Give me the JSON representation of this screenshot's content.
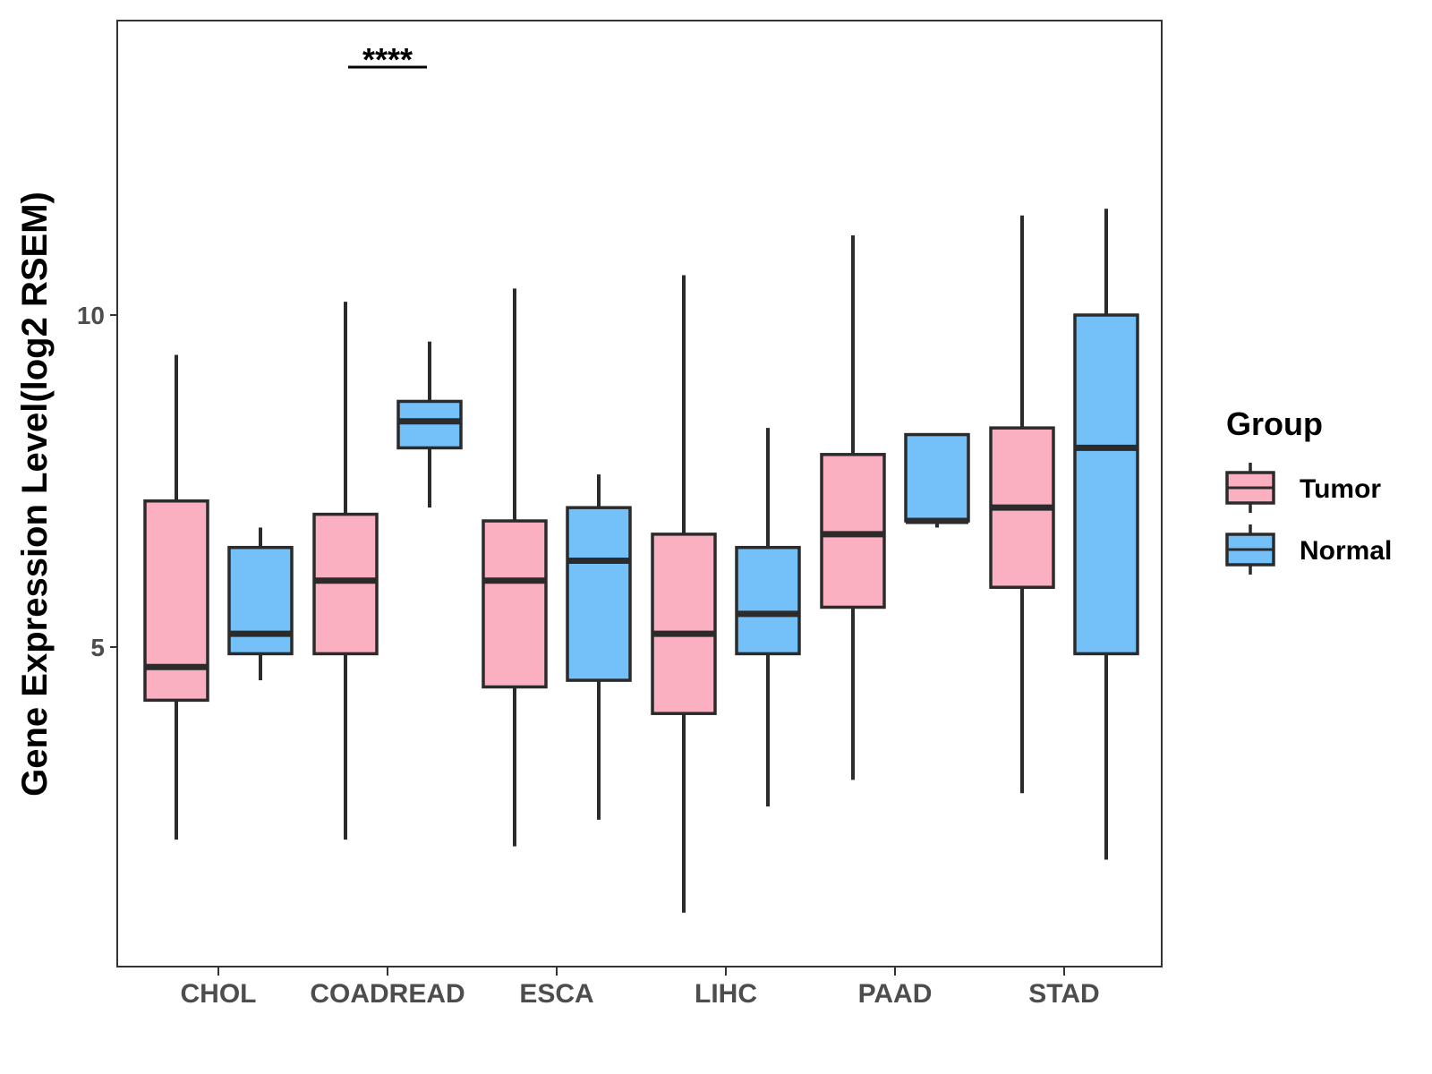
{
  "chart_data": {
    "type": "boxplot",
    "title": "",
    "xlabel": "",
    "ylabel": "Gene Expression Level(log2 RSEM)",
    "ylim": [
      0.3,
      14.5
    ],
    "yticks": [
      5,
      10
    ],
    "grid": false,
    "categories": [
      "CHOL",
      "COADREAD",
      "ESCA",
      "LIHC",
      "PAAD",
      "STAD"
    ],
    "legend": {
      "title": "Group",
      "position": "right",
      "entries": [
        {
          "name": "Tumor",
          "color": "#FBB0C2"
        },
        {
          "name": "Normal",
          "color": "#74C0F8"
        }
      ]
    },
    "series": [
      {
        "name": "Tumor",
        "color": "#FBB0C2",
        "boxes": [
          {
            "whisker_low": 2.1,
            "q1": 4.2,
            "median": 4.7,
            "q3": 7.2,
            "whisker_high": 9.4
          },
          {
            "whisker_low": 2.1,
            "q1": 4.9,
            "median": 6.0,
            "q3": 7.0,
            "whisker_high": 10.2
          },
          {
            "whisker_low": 2.0,
            "q1": 4.4,
            "median": 6.0,
            "q3": 6.9,
            "whisker_high": 10.4
          },
          {
            "whisker_low": 1.0,
            "q1": 4.0,
            "median": 5.2,
            "q3": 6.7,
            "whisker_high": 10.6
          },
          {
            "whisker_low": 3.0,
            "q1": 5.6,
            "median": 6.7,
            "q3": 7.9,
            "whisker_high": 11.2
          },
          {
            "whisker_low": 2.8,
            "q1": 5.9,
            "median": 7.1,
            "q3": 8.3,
            "whisker_high": 11.5
          }
        ]
      },
      {
        "name": "Normal",
        "color": "#74C0F8",
        "boxes": [
          {
            "whisker_low": 4.5,
            "q1": 4.9,
            "median": 5.2,
            "q3": 6.5,
            "whisker_high": 6.8
          },
          {
            "whisker_low": 7.1,
            "q1": 8.0,
            "median": 8.4,
            "q3": 8.7,
            "whisker_high": 9.6
          },
          {
            "whisker_low": 2.4,
            "q1": 4.5,
            "median": 6.3,
            "q3": 7.1,
            "whisker_high": 7.6
          },
          {
            "whisker_low": 2.6,
            "q1": 4.9,
            "median": 5.5,
            "q3": 6.5,
            "whisker_high": 8.3
          },
          {
            "whisker_low": 6.8,
            "q1": 6.9,
            "median": 6.9,
            "q3": 8.2,
            "whisker_high": 8.2
          },
          {
            "whisker_low": 1.8,
            "q1": 4.9,
            "median": 8.0,
            "q3": 10.0,
            "whisker_high": 11.6
          }
        ]
      }
    ],
    "annotations": [
      {
        "category": "COADREAD",
        "text": "****"
      }
    ]
  }
}
